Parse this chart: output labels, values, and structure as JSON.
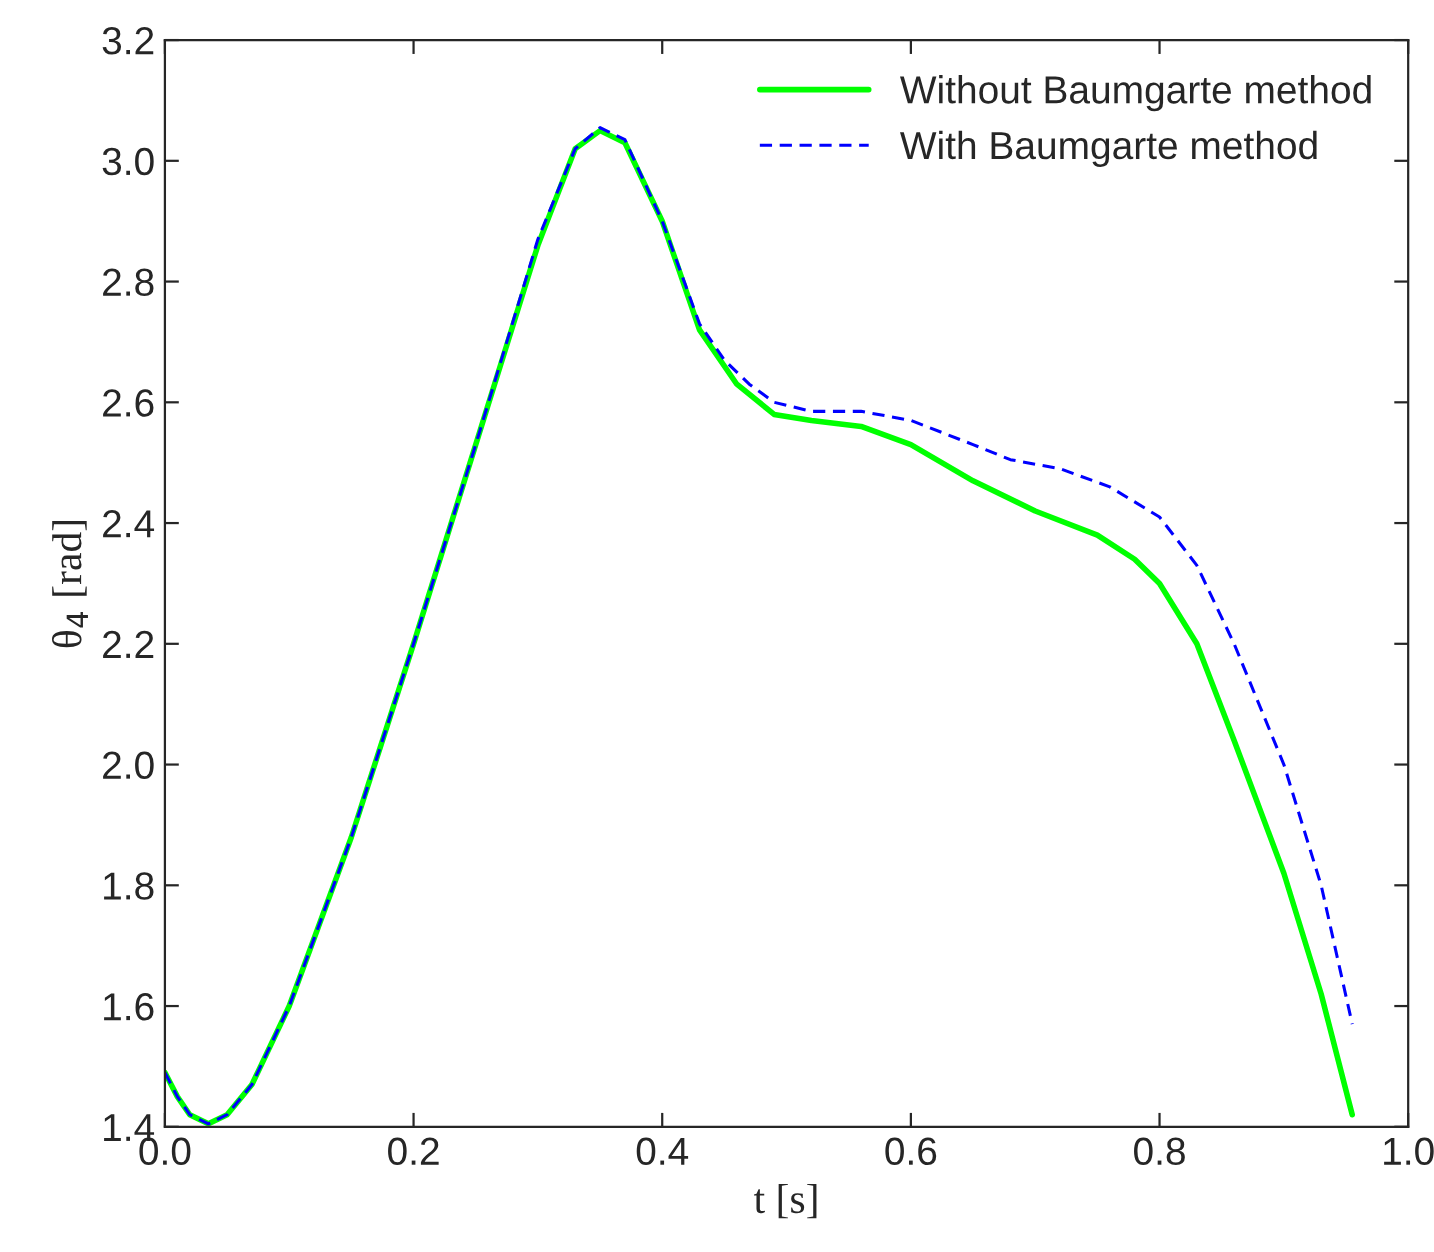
{
  "chart_data": {
    "type": "line",
    "xlabel": "t [s]",
    "ylabel": "θ$_{4}$ [rad]",
    "xlim": [
      0,
      1
    ],
    "ylim": [
      1.4,
      3.2
    ],
    "xticks": [
      {
        "value": 0,
        "label": "0.0"
      },
      0.2,
      0.4,
      0.6,
      0.8,
      {
        "value": 1,
        "label": "1.0"
      }
    ],
    "yticks": [
      1.4,
      1.6,
      1.8,
      {
        "value": 2,
        "label": "2.0"
      },
      2.2,
      2.4,
      2.6,
      2.8,
      {
        "value": 3,
        "label": "3.0"
      },
      3.2
    ],
    "grid": false,
    "legend": "top right",
    "series": [
      {
        "name": "Without Baumgarte method",
        "color": "#00ff00",
        "line_style": "solid",
        "x": [
          0,
          0.01,
          0.02,
          0.035,
          0.05,
          0.07,
          0.1,
          0.15,
          0.2,
          0.25,
          0.3,
          0.33,
          0.35,
          0.37,
          0.4,
          0.43,
          0.46,
          0.49,
          0.52,
          0.56,
          0.6,
          0.65,
          0.7,
          0.75,
          0.78,
          0.8,
          0.83,
          0.86,
          0.9,
          0.93,
          0.955
        ],
        "values": [
          1.49,
          1.45,
          1.42,
          1.405,
          1.42,
          1.47,
          1.6,
          1.88,
          2.2,
          2.53,
          2.86,
          3.02,
          3.05,
          3.03,
          2.9,
          2.72,
          2.63,
          2.58,
          2.57,
          2.56,
          2.53,
          2.47,
          2.42,
          2.38,
          2.34,
          2.3,
          2.2,
          2.04,
          1.82,
          1.62,
          1.42
        ]
      },
      {
        "name": "With Baumgarte method",
        "color": "#0000ff",
        "line_style": "dashed",
        "x": [
          0,
          0.01,
          0.02,
          0.035,
          0.05,
          0.07,
          0.1,
          0.15,
          0.2,
          0.25,
          0.3,
          0.33,
          0.35,
          0.37,
          0.4,
          0.43,
          0.45,
          0.47,
          0.49,
          0.52,
          0.56,
          0.6,
          0.65,
          0.68,
          0.72,
          0.76,
          0.8,
          0.83,
          0.86,
          0.9,
          0.93,
          0.955
        ],
        "values": [
          1.49,
          1.45,
          1.42,
          1.405,
          1.42,
          1.47,
          1.6,
          1.88,
          2.2,
          2.53,
          2.87,
          3.02,
          3.055,
          3.035,
          2.9,
          2.73,
          2.67,
          2.63,
          2.6,
          2.585,
          2.585,
          2.57,
          2.53,
          2.505,
          2.49,
          2.46,
          2.41,
          2.33,
          2.2,
          2.0,
          1.8,
          1.57
        ]
      }
    ]
  }
}
